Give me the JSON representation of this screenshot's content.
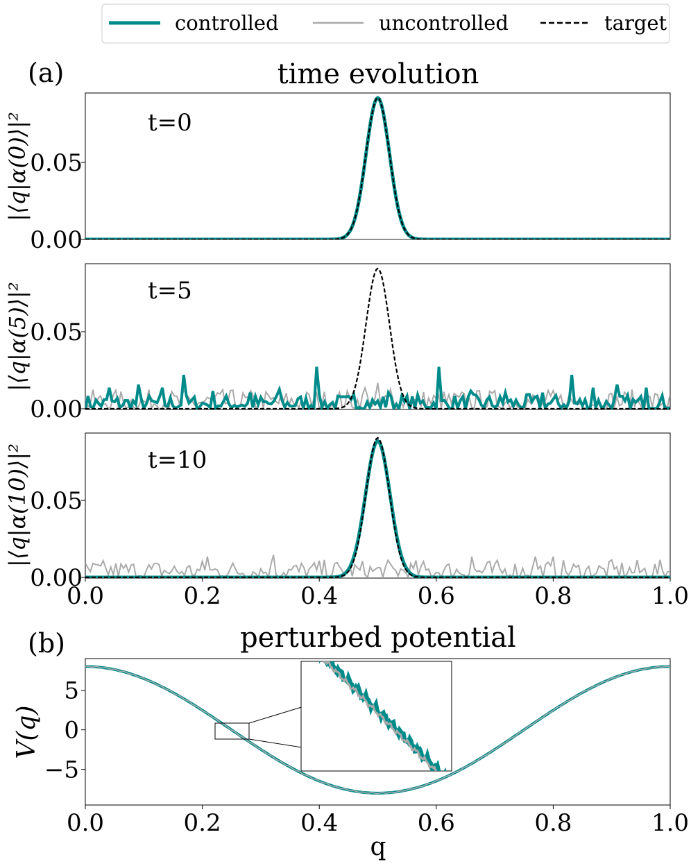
{
  "legend": {
    "items": [
      {
        "label": "controlled",
        "color": "#008B8B",
        "style": "solid-thick"
      },
      {
        "label": "uncontrolled",
        "color": "#aaaaaa",
        "style": "solid"
      },
      {
        "label": "target",
        "color": "#000000",
        "style": "dashed"
      }
    ]
  },
  "colors": {
    "controlled": "#008B8B",
    "uncontrolled": "#aaaaaa",
    "target": "#000000",
    "inset_line": "#8fa9ae"
  },
  "chart_data": [
    {
      "type": "line",
      "panel_tag": "(a)",
      "title": "time evolution",
      "subpanels": [
        {
          "annotation": "t=0",
          "ylabel": "|⟨q|α(0)⟩|²",
          "yticks": [
            "0.00",
            "0.05"
          ],
          "ytick_values": [
            0.0,
            0.05
          ],
          "ylim": [
            0,
            0.09
          ],
          "xlim": [
            0,
            1
          ],
          "x_ticks_shown": false,
          "target": {
            "center": 0.5,
            "peak": 0.087,
            "width": 0.02
          },
          "controlled": {
            "center": 0.5,
            "peak": 0.087,
            "width": 0.02
          },
          "uncontrolled": {
            "level": 0.0
          }
        },
        {
          "annotation": "t=5",
          "ylabel": "|⟨q|α(5)⟩|²",
          "yticks": [
            "0.00",
            "0.05"
          ],
          "ytick_values": [
            0.0,
            0.05
          ],
          "ylim": [
            0,
            0.09
          ],
          "xlim": [
            0,
            1
          ],
          "x_ticks_shown": false,
          "target": {
            "center": 0.5,
            "peak": 0.087,
            "width": 0.02
          },
          "controlled": {
            "noise_max": 0.009,
            "spikes": [
              [
                0.04,
                0.013
              ],
              [
                0.09,
                0.015
              ],
              [
                0.13,
                0.013
              ],
              [
                0.167,
                0.021
              ],
              [
                0.22,
                0.011
              ],
              [
                0.28,
                0.01
              ],
              [
                0.33,
                0.012
              ],
              [
                0.396,
                0.026
              ],
              [
                0.46,
                0.009
              ],
              [
                0.52,
                0.01
              ],
              [
                0.603,
                0.026
              ],
              [
                0.66,
                0.011
              ],
              [
                0.72,
                0.01
              ],
              [
                0.78,
                0.01
              ],
              [
                0.833,
                0.021
              ],
              [
                0.87,
                0.013
              ],
              [
                0.91,
                0.015
              ],
              [
                0.96,
                0.013
              ]
            ]
          },
          "uncontrolled": {
            "noise_max": 0.012,
            "spikes": [
              [
                0.48,
                0.013
              ],
              [
                0.5,
                0.016
              ],
              [
                0.52,
                0.012
              ]
            ]
          }
        },
        {
          "annotation": "t=10",
          "ylabel": "|⟨q|α(10)⟩|²",
          "yticks": [
            "0.00",
            "0.05"
          ],
          "ytick_values": [
            0.0,
            0.05
          ],
          "ylim": [
            0,
            0.09
          ],
          "xlim": [
            0,
            1
          ],
          "xticks": [
            "0.0",
            "0.2",
            "0.4",
            "0.6",
            "0.8",
            "1.0"
          ],
          "xtick_values": [
            0,
            0.2,
            0.4,
            0.6,
            0.8,
            1.0
          ],
          "x_ticks_shown": true,
          "target": {
            "center": 0.5,
            "peak": 0.087,
            "width": 0.02
          },
          "controlled": {
            "center": 0.5,
            "peak": 0.085,
            "width": 0.021
          },
          "uncontrolled": {
            "noise_max": 0.011,
            "spikes": [
              [
                0.21,
                0.013
              ],
              [
                0.32,
                0.014
              ],
              [
                0.66,
                0.013
              ],
              [
                0.77,
                0.013
              ],
              [
                0.8,
                0.013
              ]
            ]
          }
        }
      ]
    },
    {
      "type": "line",
      "panel_tag": "(b)",
      "title": "perturbed potential",
      "xlabel": "q",
      "ylabel": "V(q)",
      "xlim": [
        0,
        1
      ],
      "ylim": [
        -9.5,
        9
      ],
      "xticks": [
        "0.0",
        "0.2",
        "0.4",
        "0.6",
        "0.8",
        "1.0"
      ],
      "xtick_values": [
        0,
        0.2,
        0.4,
        0.6,
        0.8,
        1.0
      ],
      "yticks": [
        "5",
        "0",
        "−5"
      ],
      "ytick_values": [
        5,
        0,
        -5
      ],
      "curve": {
        "formula": "V(q) = 8·cos(2πq)",
        "amplitude": 8
      },
      "zoom_region": {
        "x": [
          0.22,
          0.28
        ],
        "y": [
          -1.2,
          1.0
        ]
      },
      "inset_bounds": {
        "x": [
          0.37,
          0.63
        ],
        "y": [
          -5.3,
          8.8
        ]
      }
    }
  ]
}
